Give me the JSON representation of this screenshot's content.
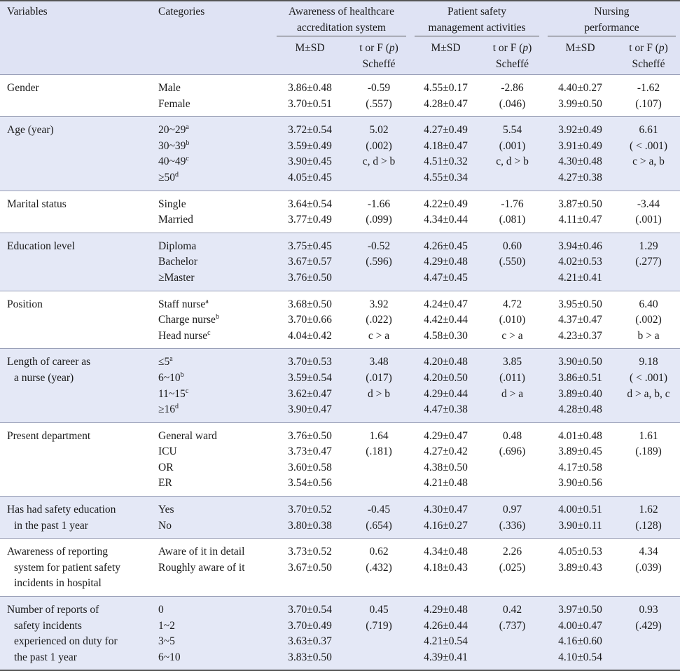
{
  "header": {
    "variables": "Variables",
    "categories": "Categories",
    "groups": [
      {
        "lines": [
          "Awareness of healthcare",
          "accreditation system"
        ]
      },
      {
        "lines": [
          "Patient safety",
          "management activities"
        ]
      },
      {
        "lines": [
          "Nursing",
          "performance"
        ]
      }
    ],
    "msd": "M±SD",
    "stat_l1_pre": "t or F (",
    "stat_l1_p": "p",
    "stat_l1_post": ")",
    "stat_l2": "Scheffé"
  },
  "rows": [
    {
      "variable": [
        "Gender"
      ],
      "categories": [
        {
          "text": "Male",
          "sup": ""
        },
        {
          "text": "Female",
          "sup": ""
        }
      ],
      "c1": {
        "msd": [
          "3.86±0.48",
          "3.70±0.51"
        ],
        "stat": [
          "-0.59",
          "(.557)"
        ]
      },
      "c2": {
        "msd": [
          "4.55±0.17",
          "4.28±0.47"
        ],
        "stat": [
          "-2.86",
          "(.046)"
        ]
      },
      "c3": {
        "msd": [
          "4.40±0.27",
          "3.99±0.50"
        ],
        "stat": [
          "-1.62",
          "(.107)"
        ]
      }
    },
    {
      "variable": [
        "Age (year)"
      ],
      "categories": [
        {
          "text": "20~29",
          "sup": "a"
        },
        {
          "text": "30~39",
          "sup": "b"
        },
        {
          "text": "40~49",
          "sup": "c"
        },
        {
          "text": "≥50",
          "sup": "d"
        }
      ],
      "c1": {
        "msd": [
          "3.72±0.54",
          "3.59±0.49",
          "3.90±0.45",
          "4.05±0.45"
        ],
        "stat": [
          "5.02",
          "(.002)",
          "c, d > b"
        ]
      },
      "c2": {
        "msd": [
          "4.27±0.49",
          "4.18±0.47",
          "4.51±0.32",
          "4.55±0.34"
        ],
        "stat": [
          "5.54",
          "(.001)",
          "c, d > b"
        ]
      },
      "c3": {
        "msd": [
          "3.92±0.49",
          "3.91±0.49",
          "4.30±0.48",
          "4.27±0.38"
        ],
        "stat": [
          "6.61",
          "( < .001)",
          "c > a, b"
        ]
      }
    },
    {
      "variable": [
        "Marital status"
      ],
      "categories": [
        {
          "text": "Single",
          "sup": ""
        },
        {
          "text": "Married",
          "sup": ""
        }
      ],
      "c1": {
        "msd": [
          "3.64±0.54",
          "3.77±0.49"
        ],
        "stat": [
          "-1.66",
          "(.099)"
        ]
      },
      "c2": {
        "msd": [
          "4.22±0.49",
          "4.34±0.44"
        ],
        "stat": [
          "-1.76",
          "(.081)"
        ]
      },
      "c3": {
        "msd": [
          "3.87±0.50",
          "4.11±0.47"
        ],
        "stat": [
          "-3.44",
          "(.001)"
        ]
      }
    },
    {
      "variable": [
        "Education level"
      ],
      "categories": [
        {
          "text": "Diploma",
          "sup": ""
        },
        {
          "text": "Bachelor",
          "sup": ""
        },
        {
          "text": "≥Master",
          "sup": ""
        }
      ],
      "c1": {
        "msd": [
          "3.75±0.45",
          "3.67±0.57",
          "3.76±0.50"
        ],
        "stat": [
          "-0.52",
          "(.596)"
        ]
      },
      "c2": {
        "msd": [
          "4.26±0.45",
          "4.29±0.48",
          "4.47±0.45"
        ],
        "stat": [
          "0.60",
          "(.550)"
        ]
      },
      "c3": {
        "msd": [
          "3.94±0.46",
          "4.02±0.53",
          "4.21±0.41"
        ],
        "stat": [
          "1.29",
          "(.277)"
        ]
      }
    },
    {
      "variable": [
        "Position"
      ],
      "categories": [
        {
          "text": "Staff nurse",
          "sup": "a"
        },
        {
          "text": "Charge nurse",
          "sup": "b"
        },
        {
          "text": "Head nurse",
          "sup": "c"
        }
      ],
      "c1": {
        "msd": [
          "3.68±0.50",
          "3.70±0.66",
          "4.04±0.42"
        ],
        "stat": [
          "3.92",
          "(.022)",
          "c > a"
        ]
      },
      "c2": {
        "msd": [
          "4.24±0.47",
          "4.42±0.44",
          "4.58±0.30"
        ],
        "stat": [
          "4.72",
          "(.010)",
          "c > a"
        ]
      },
      "c3": {
        "msd": [
          "3.95±0.50",
          "4.37±0.47",
          "4.23±0.37"
        ],
        "stat": [
          "6.40",
          "(.002)",
          "b > a"
        ]
      }
    },
    {
      "variable": [
        "Length of career as",
        "a nurse (year)"
      ],
      "categories": [
        {
          "text": "≤5",
          "sup": "a"
        },
        {
          "text": "6~10",
          "sup": "b"
        },
        {
          "text": "11~15",
          "sup": "c"
        },
        {
          "text": "≥16",
          "sup": "d"
        }
      ],
      "c1": {
        "msd": [
          "3.70±0.53",
          "3.59±0.54",
          "3.62±0.47",
          "3.90±0.47"
        ],
        "stat": [
          "3.48",
          "(.017)",
          "d > b"
        ]
      },
      "c2": {
        "msd": [
          "4.20±0.48",
          "4.20±0.50",
          "4.29±0.44",
          "4.47±0.38"
        ],
        "stat": [
          "3.85",
          "(.011)",
          "d > a"
        ]
      },
      "c3": {
        "msd": [
          "3.90±0.50",
          "3.86±0.51",
          "3.89±0.40",
          "4.28±0.48"
        ],
        "stat": [
          "9.18",
          "( < .001)",
          "d > a, b, c"
        ]
      }
    },
    {
      "variable": [
        "Present department"
      ],
      "categories": [
        {
          "text": "General ward",
          "sup": ""
        },
        {
          "text": "ICU",
          "sup": ""
        },
        {
          "text": "OR",
          "sup": ""
        },
        {
          "text": "ER",
          "sup": ""
        }
      ],
      "c1": {
        "msd": [
          "3.76±0.50",
          "3.73±0.47",
          "3.60±0.58",
          "3.54±0.56"
        ],
        "stat": [
          "1.64",
          "(.181)"
        ]
      },
      "c2": {
        "msd": [
          "4.29±0.47",
          "4.27±0.42",
          "4.38±0.50",
          "4.21±0.48"
        ],
        "stat": [
          "0.48",
          "(.696)"
        ]
      },
      "c3": {
        "msd": [
          "4.01±0.48",
          "3.89±0.45",
          "4.17±0.58",
          "3.90±0.56"
        ],
        "stat": [
          "1.61",
          "(.189)"
        ]
      }
    },
    {
      "variable": [
        "Has had safety education",
        "in the past 1 year"
      ],
      "categories": [
        {
          "text": "Yes",
          "sup": ""
        },
        {
          "text": "No",
          "sup": ""
        }
      ],
      "c1": {
        "msd": [
          "3.70±0.52",
          "3.80±0.38"
        ],
        "stat": [
          "-0.45",
          "(.654)"
        ]
      },
      "c2": {
        "msd": [
          "4.30±0.47",
          "4.16±0.27"
        ],
        "stat": [
          "0.97",
          "(.336)"
        ]
      },
      "c3": {
        "msd": [
          "4.00±0.51",
          "3.90±0.11"
        ],
        "stat": [
          "1.62",
          "(.128)"
        ]
      }
    },
    {
      "variable": [
        "Awareness of reporting",
        "system for patient safety",
        "incidents in hospital"
      ],
      "categories": [
        {
          "text": "Aware of it in detail",
          "sup": ""
        },
        {
          "text": "Roughly aware of it",
          "sup": ""
        }
      ],
      "c1": {
        "msd": [
          "3.73±0.52",
          "3.67±0.50"
        ],
        "stat": [
          "0.62",
          "(.432)"
        ]
      },
      "c2": {
        "msd": [
          "4.34±0.48",
          "4.18±0.43"
        ],
        "stat": [
          "2.26",
          "(.025)"
        ]
      },
      "c3": {
        "msd": [
          "4.05±0.53",
          "3.89±0.43"
        ],
        "stat": [
          "4.34",
          "(.039)"
        ]
      }
    },
    {
      "variable": [
        "Number of reports of",
        "safety incidents",
        "experienced on duty for",
        "the past 1 year"
      ],
      "categories": [
        {
          "text": "0",
          "sup": ""
        },
        {
          "text": "1~2",
          "sup": ""
        },
        {
          "text": "3~5",
          "sup": ""
        },
        {
          "text": "6~10",
          "sup": ""
        }
      ],
      "c1": {
        "msd": [
          "3.70±0.54",
          "3.70±0.49",
          "3.63±0.37",
          "3.83±0.50"
        ],
        "stat": [
          "0.45",
          "(.719)"
        ]
      },
      "c2": {
        "msd": [
          "4.29±0.48",
          "4.26±0.44",
          "4.21±0.54",
          "4.39±0.41"
        ],
        "stat": [
          "0.42",
          "(.737)"
        ]
      },
      "c3": {
        "msd": [
          "3.97±0.50",
          "4.00±0.47",
          "4.16±0.60",
          "4.10±0.54"
        ],
        "stat": [
          "0.93",
          "(.429)"
        ]
      }
    }
  ]
}
